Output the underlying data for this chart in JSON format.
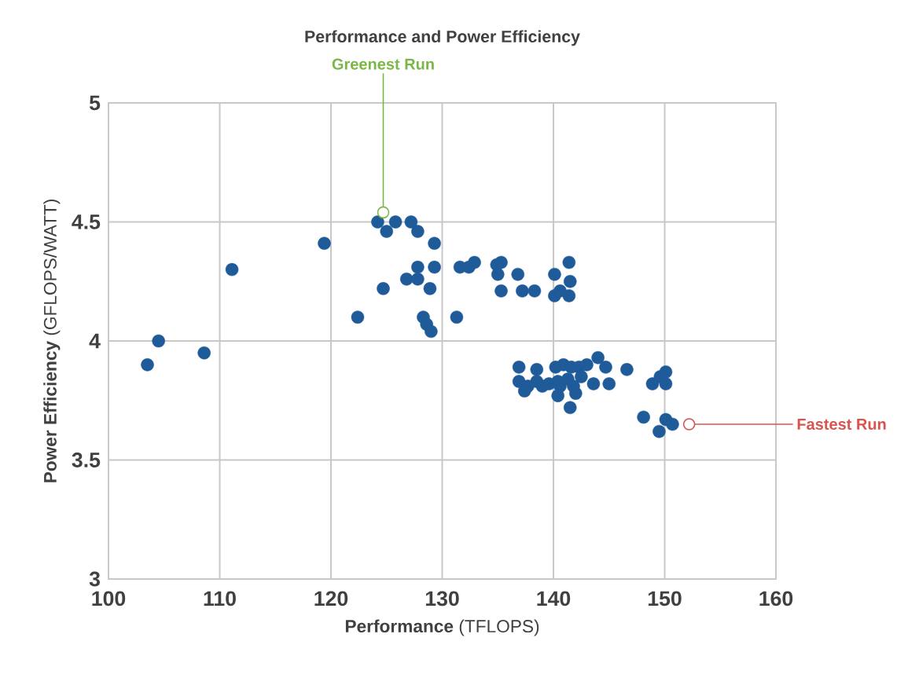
{
  "chart_data": {
    "type": "scatter",
    "title": "Performance and Power Efficiency",
    "xlabel": "**Performance** (TFLOPS)",
    "ylabel": "**Power Efficiency** (GFLOPS/WATT)",
    "xlim": [
      100,
      160
    ],
    "ylim": [
      3,
      5
    ],
    "xticks": [
      100,
      110,
      120,
      130,
      140,
      150,
      160
    ],
    "yticks": [
      3,
      3.5,
      4,
      4.5,
      5
    ],
    "grid": true,
    "x": [
      103.5,
      104.5,
      108.6,
      111.1,
      119.4,
      122.4,
      124.2,
      125.0,
      125.8,
      127.2,
      127.8,
      129.3,
      127.8,
      129.3,
      126.8,
      127.8,
      124.7,
      128.9,
      128.3,
      128.6,
      129.0,
      131.6,
      132.4,
      132.9,
      134.9,
      135.3,
      135.0,
      136.8,
      135.3,
      137.2,
      138.3,
      140.1,
      141.4,
      141.5,
      140.1,
      140.6,
      141.4,
      131.3,
      136.9,
      138.5,
      140.2,
      140.9,
      141.6,
      142.3,
      143.0,
      144.0,
      144.7,
      146.6,
      136.9,
      137.7,
      137.4,
      138.5,
      139.0,
      139.6,
      140.4,
      140.6,
      140.4,
      141.3,
      141.8,
      142.0,
      142.5,
      143.6,
      145.0,
      141.5,
      148.9,
      149.6,
      150.1,
      150.1,
      148.1,
      150.1,
      150.7,
      149.5
    ],
    "values": [
      3.9,
      4.0,
      3.95,
      4.3,
      4.41,
      4.1,
      4.5,
      4.46,
      4.5,
      4.5,
      4.46,
      4.41,
      4.31,
      4.31,
      4.26,
      4.26,
      4.22,
      4.22,
      4.1,
      4.07,
      4.04,
      4.31,
      4.31,
      4.33,
      4.32,
      4.33,
      4.28,
      4.28,
      4.21,
      4.21,
      4.21,
      4.28,
      4.33,
      4.25,
      4.19,
      4.21,
      4.19,
      4.1,
      3.89,
      3.88,
      3.89,
      3.9,
      3.89,
      3.89,
      3.9,
      3.93,
      3.89,
      3.88,
      3.83,
      3.81,
      3.79,
      3.83,
      3.81,
      3.82,
      3.83,
      3.81,
      3.77,
      3.84,
      3.81,
      3.78,
      3.85,
      3.82,
      3.82,
      3.72,
      3.82,
      3.85,
      3.87,
      3.82,
      3.68,
      3.67,
      3.65,
      3.62
    ],
    "color": "#1f5a99",
    "annotations": [
      {
        "text": "Greenest Run",
        "x": 124.7,
        "y": 4.54
      },
      {
        "text": "Fastest Run",
        "x": 152.2,
        "y": 3.65
      }
    ]
  }
}
